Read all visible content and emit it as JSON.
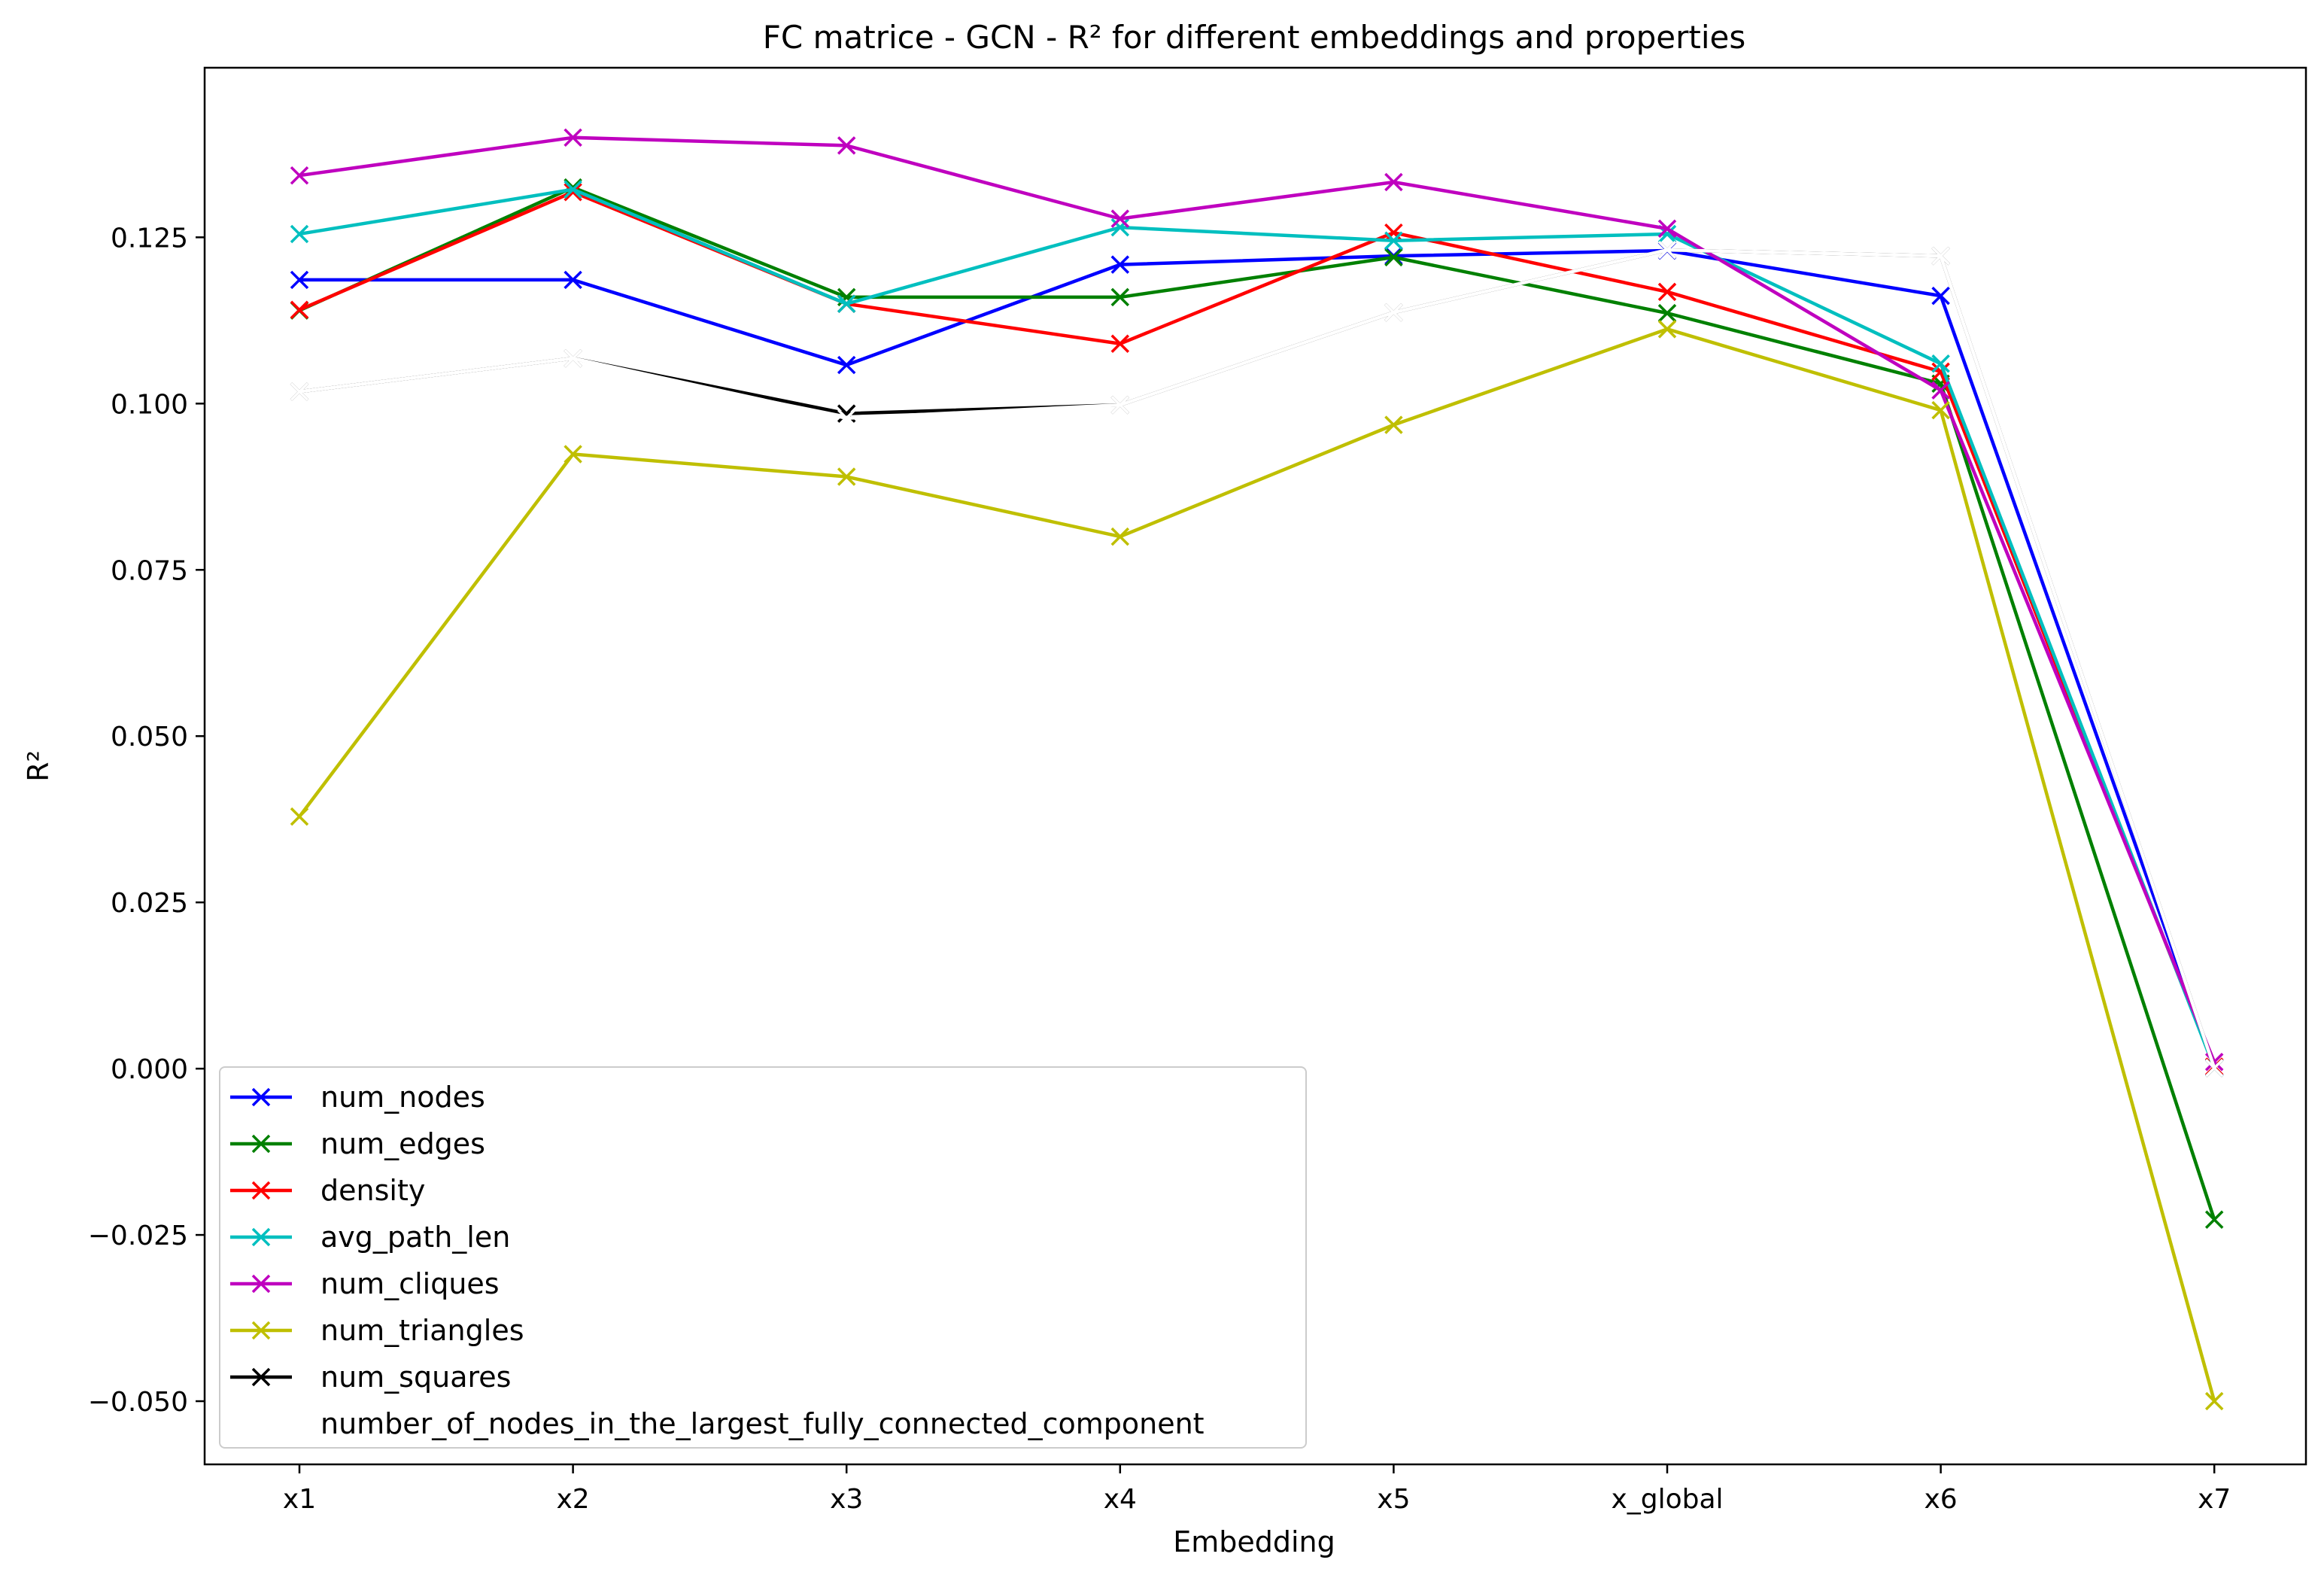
{
  "chart_data": {
    "type": "line",
    "title": "FC matrice - GCN - R² for different embeddings and properties",
    "xlabel": "Embedding",
    "ylabel": "R²",
    "categories": [
      "x1",
      "x2",
      "x3",
      "x4",
      "x5",
      "x_global",
      "x6",
      "x7"
    ],
    "ylim": [
      -0.0595,
      0.1505
    ],
    "yticks": [
      -0.05,
      -0.025,
      0.0,
      0.025,
      0.05,
      0.075,
      0.1,
      0.125
    ],
    "ytick_labels": [
      "−0.050",
      "−0.025",
      "0.000",
      "0.025",
      "0.050",
      "0.075",
      "0.100",
      "0.125"
    ],
    "grid": false,
    "legend_position": "lower-left",
    "marker": "x",
    "series": [
      {
        "name": "num_nodes",
        "color": "#0000ff",
        "values": [
          0.1186,
          0.1186,
          0.1058,
          0.1209,
          0.1222,
          0.123,
          0.1162,
          0.0002
        ]
      },
      {
        "name": "num_edges",
        "color": "#008000",
        "values": [
          0.114,
          0.1325,
          0.116,
          0.116,
          0.122,
          0.1136,
          0.103,
          -0.0227
        ]
      },
      {
        "name": "density",
        "color": "#ff0000",
        "values": [
          0.1141,
          0.1318,
          0.115,
          0.109,
          0.1257,
          0.1168,
          0.1048,
          0.0003
        ]
      },
      {
        "name": "avg_path_len",
        "color": "#00bfbf",
        "values": [
          0.1255,
          0.1322,
          0.115,
          0.1265,
          0.1245,
          0.1255,
          0.106,
          0.0001
        ]
      },
      {
        "name": "num_cliques",
        "color": "#bf00bf",
        "values": [
          0.1343,
          0.14,
          0.1388,
          0.1278,
          0.1333,
          0.1263,
          0.102,
          0.001
        ]
      },
      {
        "name": "num_triangles",
        "color": "#bfbf00",
        "values": [
          0.0379,
          0.0924,
          0.089,
          0.08,
          0.0968,
          0.1112,
          0.099,
          -0.05
        ]
      },
      {
        "name": "num_squares",
        "color": "#000000",
        "values": [
          0.1018,
          0.1068,
          0.0985,
          0.0998,
          0.1137,
          0.1231,
          0.1222,
          0.0001
        ]
      },
      {
        "name": "number_of_nodes_in_the_largest_fully_connected_component",
        "color": "#ffffff",
        "values": [
          0.1018,
          0.1068,
          0.0978,
          0.0998,
          0.1137,
          0.1231,
          0.1222,
          0.0001
        ]
      }
    ]
  }
}
